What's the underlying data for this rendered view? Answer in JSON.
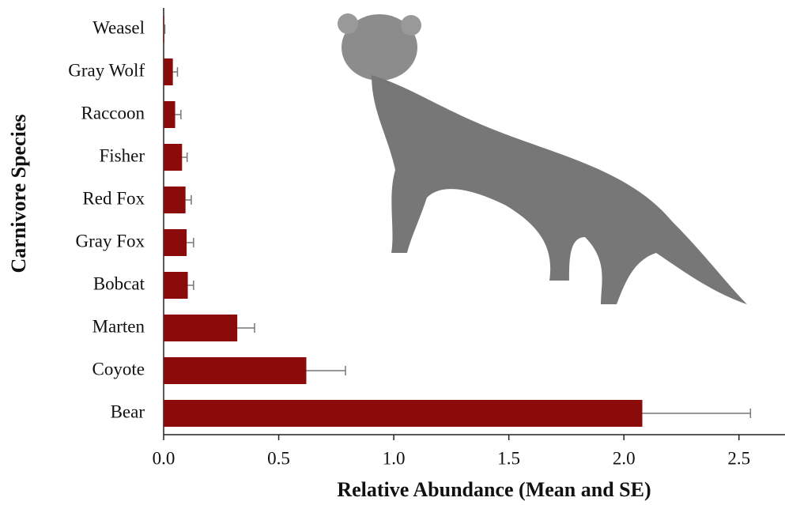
{
  "chart_data": {
    "type": "barh",
    "x_label": "Relative Abundance (Mean and SE)",
    "y_label": "Carnivore Species",
    "categories": [
      "Weasel",
      "Gray Wolf",
      "Raccoon",
      "Fisher",
      "Red Fox",
      "Gray Fox",
      "Bobcat",
      "Marten",
      "Coyote",
      "Bear"
    ],
    "values": [
      0.003,
      0.04,
      0.05,
      0.08,
      0.095,
      0.1,
      0.105,
      0.32,
      0.62,
      2.08
    ],
    "errors": [
      0.002,
      0.02,
      0.025,
      0.022,
      0.025,
      0.03,
      0.025,
      0.075,
      0.17,
      0.47
    ],
    "color": "#8b0a0a",
    "error_color": "#777777",
    "xlim": [
      0,
      2.7
    ],
    "xticks": [
      {
        "value": 0,
        "label": "0.0"
      },
      0.5,
      {
        "value": 1,
        "label": "1.0"
      },
      1.5,
      {
        "value": 2,
        "label": "2.0"
      },
      2.5
    ]
  }
}
